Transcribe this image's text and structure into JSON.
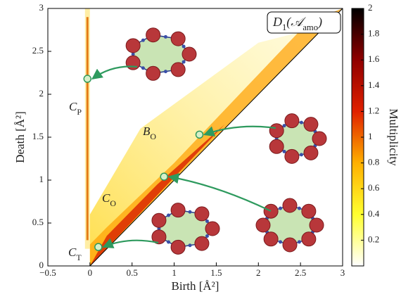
{
  "chart_data": {
    "type": "persistence",
    "title": {
      "main": "D",
      "sub": "1",
      "open": "(",
      "arg": "𝒜",
      "argsub": "amo",
      "close": ")"
    },
    "xlabel": "Birth [Å²]",
    "ylabel": "Death [Å²]",
    "colorbar_label": "Multiplicity",
    "annotations": [
      {
        "main": "C",
        "sub": "P"
      },
      {
        "main": "B",
        "sub": "O"
      },
      {
        "main": "C",
        "sub": "O"
      },
      {
        "main": "C",
        "sub": "T"
      }
    ],
    "series": [
      {
        "color": "#2e9a5e",
        "x": [
          -0.03,
          1.3,
          0.88,
          0.1
        ],
        "values": [
          2.18,
          1.53,
          1.04,
          0.22
        ]
      }
    ],
    "xlim": [
      -0.5,
      3
    ],
    "ylim": [
      0,
      3
    ],
    "xticks": [
      {
        "value": -0.5,
        "label": "−0.5"
      },
      0,
      0.5,
      1,
      1.5,
      2,
      2.5,
      3
    ],
    "yticks": [
      0,
      0.5,
      1,
      1.5,
      2,
      2.5,
      3
    ],
    "clim": [
      0,
      2
    ],
    "cticks": [
      0.2,
      0.4,
      0.6,
      0.8,
      1,
      1.2,
      1.4,
      1.6,
      1.8,
      2
    ],
    "colormap": [
      "#ffffff",
      "#ffff30",
      "#ffb000",
      "#e02000",
      "#900000",
      "#000000"
    ]
  }
}
